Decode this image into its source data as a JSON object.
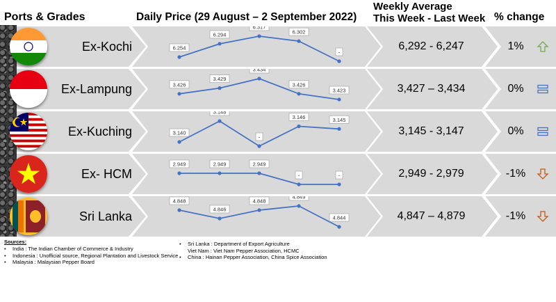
{
  "headers": {
    "ports": "Ports & Grades",
    "daily": "Daily Price (29 August – 2 September 2022)",
    "weekly_line1": "Weekly Average",
    "weekly_line2": "This Week - Last Week",
    "change": "% change"
  },
  "colors": {
    "line": "#4472c4",
    "row_band": "#d9d9d9",
    "up_arrow": "#70ad47",
    "down_arrow": "#c55a11",
    "flat_icon": "#4472c4"
  },
  "chart_data": {
    "type": "line",
    "days": 5,
    "rows": [
      {
        "port": "Ex-Kochi",
        "flag": "india",
        "values": [
          6254,
          6294,
          6317,
          6302,
          null
        ],
        "labels": [
          "6.254",
          "6.294",
          "6.317",
          "6.302",
          "-"
        ],
        "weekly_avg": "6,292 - 6,247",
        "change": "1%",
        "trend": "up"
      },
      {
        "port": "Ex-Lampung",
        "flag": "indonesia",
        "values": [
          3426,
          3429,
          3434,
          3426,
          3423
        ],
        "labels": [
          "3.426",
          "3.429",
          "3.434",
          "3.426",
          "3.423"
        ],
        "weekly_avg": "3,427 – 3,434",
        "change": "0%",
        "trend": "flat"
      },
      {
        "port": "Ex-Kuching",
        "flag": "malaysia",
        "values": [
          3140,
          3148,
          null,
          3146,
          3145
        ],
        "labels": [
          "3.140",
          "3.148",
          "-",
          "3.146",
          "3.145"
        ],
        "weekly_avg": "3,145 - 3,147",
        "change": "0%",
        "trend": "flat"
      },
      {
        "port": "Ex- HCM",
        "flag": "vietnam",
        "values": [
          2949,
          2949,
          2949,
          null,
          null
        ],
        "labels": [
          "2.949",
          "2.949",
          "2.949",
          "-",
          "-"
        ],
        "weekly_avg": "2,949 - 2,979",
        "change": "-1%",
        "trend": "down"
      },
      {
        "port": "Sri Lanka",
        "flag": "srilanka",
        "values": [
          4848,
          4846,
          4848,
          4849,
          4844
        ],
        "labels": [
          "4.848",
          "4.846",
          "4.848",
          "4.849",
          "4.844"
        ],
        "weekly_avg": "4,847 – 4,879",
        "change": "-1%",
        "trend": "down"
      }
    ]
  },
  "sources": {
    "title": "Sources:",
    "col1": [
      "India : The Indian Chamber of Commerce & Industry",
      "Indonesia : Unofficial source, Regional Plantation and Livestock Service",
      "Malaysia : Malaysian Pepper Board"
    ],
    "col2": [
      "Sri Lanka : Department of Export Agriculture",
      "Viet Nam : Viet Nam Pepper Association, HCMC",
      "China : Hainan Pepper Association, China Spice Association"
    ]
  }
}
